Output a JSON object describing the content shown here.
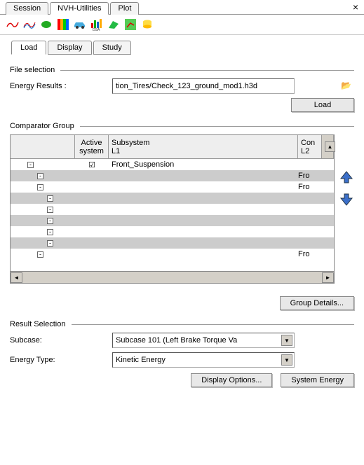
{
  "topTabs": {
    "session": "Session",
    "nvh": "NVH-Utilities",
    "plot": "Plot"
  },
  "subTabs": {
    "load": "Load",
    "display": "Display",
    "study": "Study"
  },
  "fileSelection": {
    "legend": "File selection",
    "energyLabel": "Energy Results :",
    "energyPath": "tion_Tires/Check_123_ground_mod1.h3d",
    "loadBtn": "Load"
  },
  "comparator": {
    "legend": "Comparator Group",
    "headers": {
      "active": "Active system",
      "sub": "Subsystem",
      "l1": "L1",
      "con": "Con",
      "l2": "L2"
    },
    "rows": [
      {
        "indent": 1,
        "checked": true,
        "sub": "Front_Suspension",
        "con": "",
        "alt": false
      },
      {
        "indent": 2,
        "sub": "",
        "con": "Fro",
        "alt": true
      },
      {
        "indent": 2,
        "sub": "",
        "con": "Fro",
        "alt": false
      },
      {
        "indent": 3,
        "sub": "",
        "con": "",
        "alt": true
      },
      {
        "indent": 3,
        "sub": "",
        "con": "",
        "alt": false
      },
      {
        "indent": 3,
        "sub": "",
        "con": "",
        "alt": true
      },
      {
        "indent": 3,
        "sub": "",
        "con": "",
        "alt": false
      },
      {
        "indent": 3,
        "sub": "",
        "con": "",
        "alt": true
      },
      {
        "indent": 2,
        "sub": "",
        "con": "Fro",
        "alt": false
      }
    ],
    "groupDetailsBtn": "Group Details..."
  },
  "resultSelection": {
    "legend": "Result Selection",
    "subcaseLabel": "Subcase:",
    "subcaseValue": "Subcase 101 (Left Brake Torque Va",
    "energyTypeLabel": "Energy Type:",
    "energyTypeValue": "Kinetic Energy",
    "displayOptionsBtn": "Display Options...",
    "systemEnergyBtn": "System Energy"
  }
}
